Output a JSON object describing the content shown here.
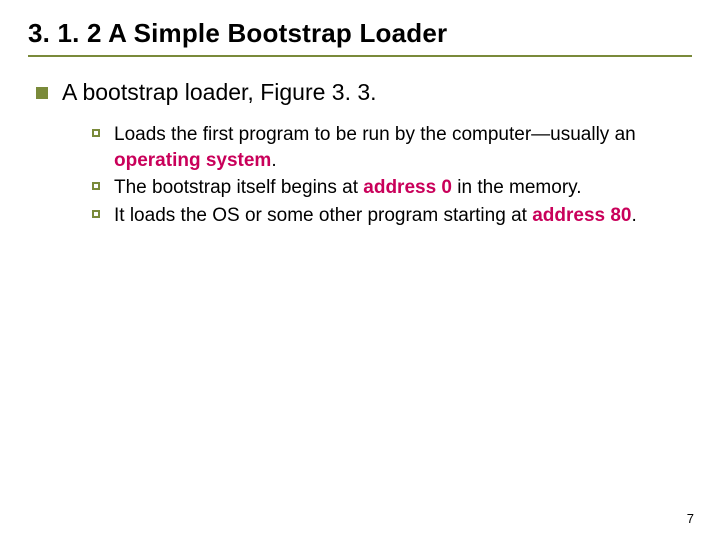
{
  "colors": {
    "title_underline": "#7a8a3a",
    "bullet_lg": "#7a8a3a",
    "bullet_sm_border": "#7a8a3a",
    "bullet_sm_fill": "#ffffff",
    "text": "#000000",
    "highlight": "#c9005a",
    "background": "#ffffff"
  },
  "typography": {
    "title_fontsize": 26,
    "lvl1_fontsize": 23,
    "lvl2_fontsize": 19,
    "pagenum_fontsize": 13,
    "title_weight": "bold"
  },
  "title": "3. 1. 2  A Simple Bootstrap Loader",
  "lvl1": "A bootstrap loader, Figure 3. 3.",
  "items": [
    {
      "pre": "Loads the first program to be run by the computer—usually an ",
      "hl": "operating system",
      "post": "."
    },
    {
      "pre": "The bootstrap itself begins at ",
      "hl": "address 0",
      "post": " in the memory."
    },
    {
      "pre": "It loads the OS or some other program starting at ",
      "hl": "address 80",
      "post": "."
    }
  ],
  "page_number": "7"
}
